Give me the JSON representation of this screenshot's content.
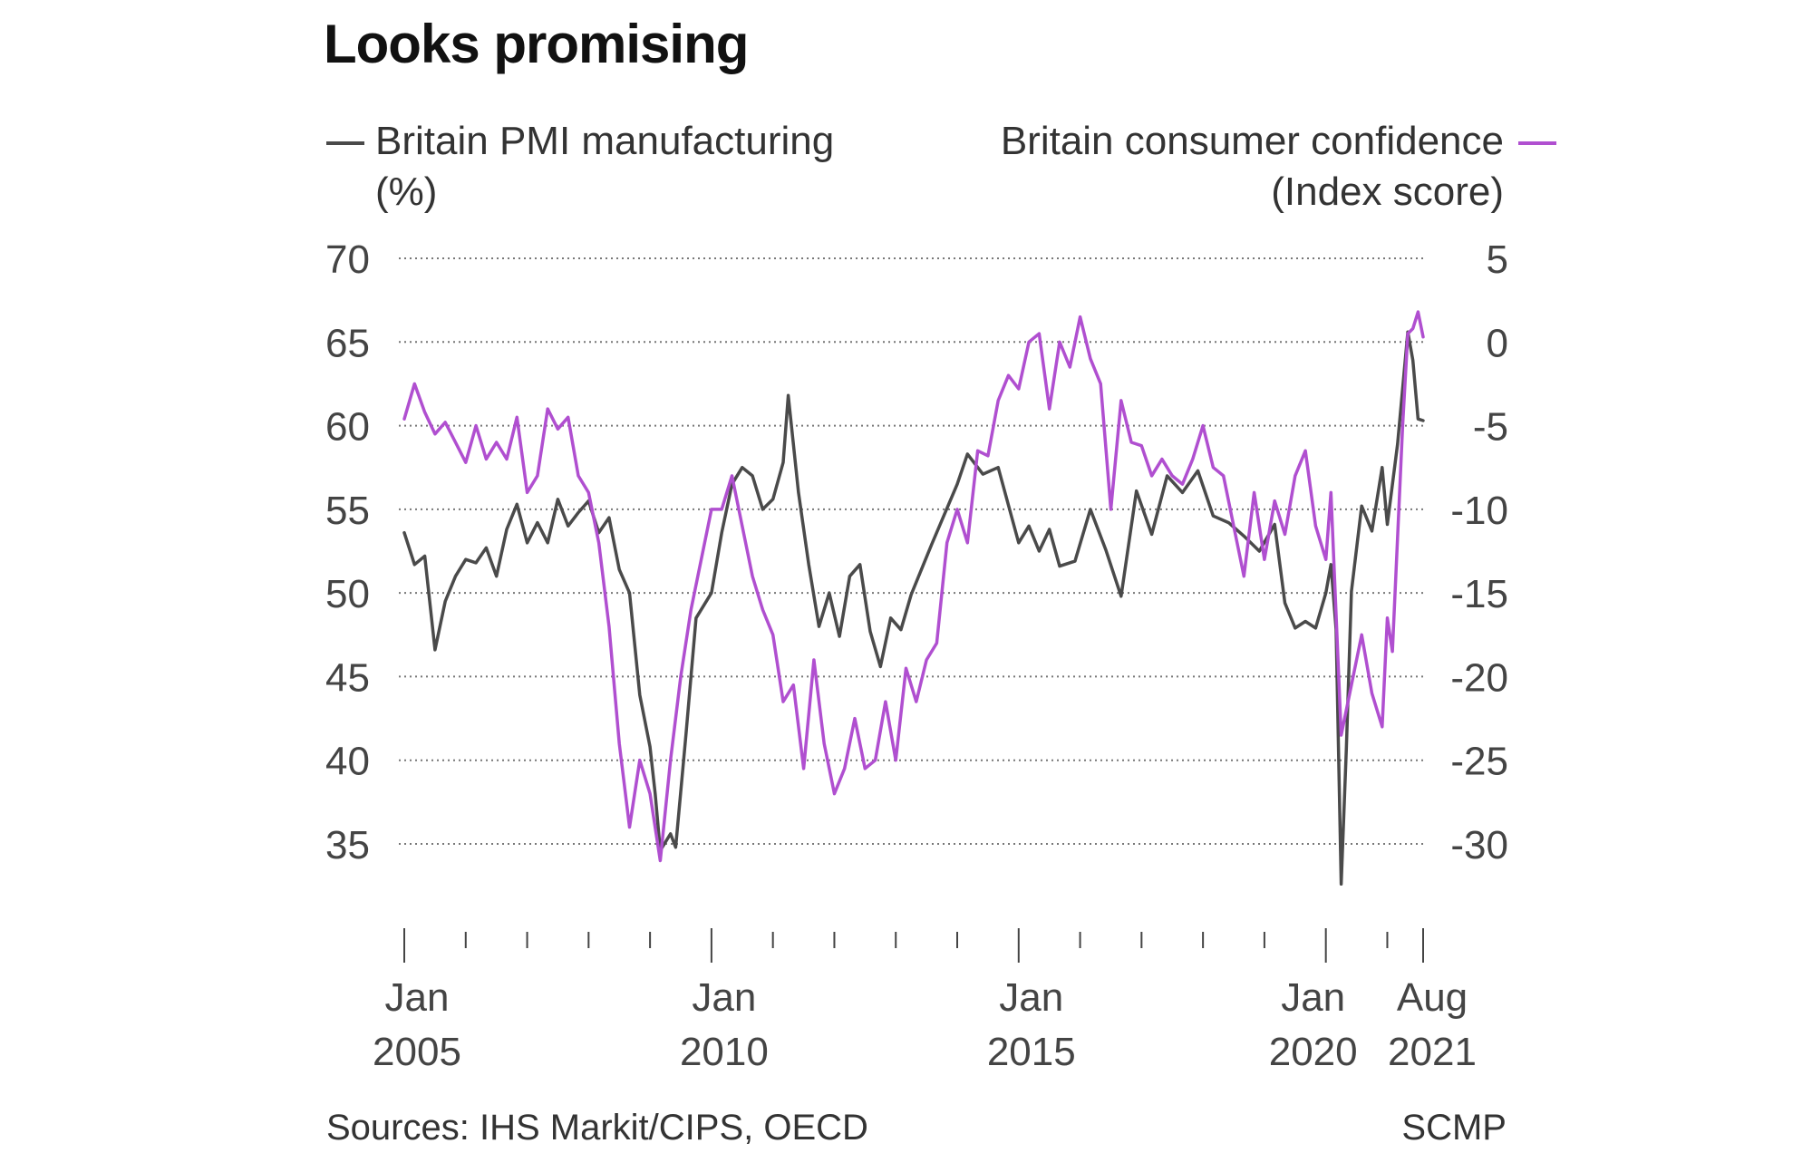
{
  "title": "Looks promising",
  "legend": {
    "left": {
      "line1": "Britain PMI manufacturing",
      "line2": "(%)",
      "color": "#4a4a4a"
    },
    "right": {
      "line1": "Britain consumer confidence",
      "line2": "(Index score)",
      "color": "#b04fd0"
    }
  },
  "footer": {
    "sources": "Sources: IHS Markit/CIPS, OECD",
    "credit": "SCMP"
  },
  "chart_data": {
    "type": "line",
    "title": "Looks promising",
    "x_range": [
      "2005-01",
      "2021-08"
    ],
    "x_ticks": [
      {
        "line1": "Jan",
        "line2": "2005",
        "x": "2005-01"
      },
      {
        "line1": "Jan",
        "line2": "2010",
        "x": "2010-01"
      },
      {
        "line1": "Jan",
        "line2": "2015",
        "x": "2015-01"
      },
      {
        "line1": "Jan",
        "line2": "2020",
        "x": "2020-01"
      },
      {
        "line1": "Aug",
        "line2": "2021",
        "x": "2021-08"
      }
    ],
    "y_left": {
      "label": "Britain PMI manufacturing (%)",
      "range": [
        35,
        70
      ],
      "ticks": [
        70,
        65,
        60,
        55,
        50,
        45,
        40,
        35
      ]
    },
    "y_right": {
      "label": "Britain consumer confidence (Index score)",
      "range": [
        -30,
        5
      ],
      "ticks": [
        5,
        0,
        -5,
        -10,
        -15,
        -20,
        -25,
        -30
      ]
    },
    "grid": true,
    "series": [
      {
        "name": "Britain PMI manufacturing",
        "axis": "left",
        "color": "#4a4a4a",
        "points": [
          [
            "2005-01",
            53.6
          ],
          [
            "2005-03",
            51.7
          ],
          [
            "2005-05",
            52.2
          ],
          [
            "2005-07",
            46.6
          ],
          [
            "2005-09",
            49.5
          ],
          [
            "2005-11",
            51.0
          ],
          [
            "2006-01",
            52.0
          ],
          [
            "2006-03",
            51.8
          ],
          [
            "2006-05",
            52.7
          ],
          [
            "2006-07",
            51.0
          ],
          [
            "2006-09",
            53.8
          ],
          [
            "2006-11",
            55.3
          ],
          [
            "2007-01",
            53.0
          ],
          [
            "2007-03",
            54.2
          ],
          [
            "2007-05",
            53.0
          ],
          [
            "2007-07",
            55.6
          ],
          [
            "2007-09",
            54.0
          ],
          [
            "2007-11",
            54.8
          ],
          [
            "2008-01",
            55.5
          ],
          [
            "2008-03",
            53.6
          ],
          [
            "2008-05",
            54.5
          ],
          [
            "2008-07",
            51.4
          ],
          [
            "2008-09",
            50.0
          ],
          [
            "2008-11",
            43.9
          ],
          [
            "2009-01",
            40.8
          ],
          [
            "2009-02",
            38.0
          ],
          [
            "2009-03",
            34.6
          ],
          [
            "2009-05",
            35.6
          ],
          [
            "2009-06",
            34.8
          ],
          [
            "2009-08",
            41.5
          ],
          [
            "2009-10",
            48.5
          ],
          [
            "2010-01",
            50.0
          ],
          [
            "2010-03",
            53.6
          ],
          [
            "2010-05",
            56.5
          ],
          [
            "2010-07",
            57.5
          ],
          [
            "2010-09",
            57.0
          ],
          [
            "2010-11",
            55.0
          ],
          [
            "2011-01",
            55.6
          ],
          [
            "2011-03",
            57.8
          ],
          [
            "2011-04",
            61.8
          ],
          [
            "2011-06",
            56.0
          ],
          [
            "2011-08",
            51.7
          ],
          [
            "2011-10",
            48.0
          ],
          [
            "2011-12",
            50.0
          ],
          [
            "2012-02",
            47.4
          ],
          [
            "2012-04",
            51.0
          ],
          [
            "2012-06",
            51.7
          ],
          [
            "2012-08",
            47.7
          ],
          [
            "2012-10",
            45.6
          ],
          [
            "2012-12",
            48.5
          ],
          [
            "2013-02",
            47.8
          ],
          [
            "2013-04",
            49.9
          ],
          [
            "2013-06",
            51.4
          ],
          [
            "2013-08",
            52.9
          ],
          [
            "2014-01",
            56.5
          ],
          [
            "2014-03",
            58.3
          ],
          [
            "2014-06",
            57.1
          ],
          [
            "2014-09",
            57.5
          ],
          [
            "2015-01",
            53.0
          ],
          [
            "2015-03",
            54.0
          ],
          [
            "2015-05",
            52.5
          ],
          [
            "2015-07",
            53.8
          ],
          [
            "2015-09",
            51.6
          ],
          [
            "2015-12",
            51.9
          ],
          [
            "2016-03",
            55.0
          ],
          [
            "2016-06",
            52.6
          ],
          [
            "2016-09",
            49.8
          ],
          [
            "2016-12",
            56.1
          ],
          [
            "2017-03",
            53.5
          ],
          [
            "2017-06",
            57.0
          ],
          [
            "2017-09",
            56.0
          ],
          [
            "2017-12",
            57.3
          ],
          [
            "2018-03",
            54.6
          ],
          [
            "2018-06",
            54.2
          ],
          [
            "2018-09",
            53.4
          ],
          [
            "2018-12",
            52.5
          ],
          [
            "2019-03",
            54.1
          ],
          [
            "2019-05",
            49.4
          ],
          [
            "2019-07",
            47.9
          ],
          [
            "2019-09",
            48.3
          ],
          [
            "2019-11",
            47.9
          ],
          [
            "2020-01",
            50.0
          ],
          [
            "2020-02",
            51.7
          ],
          [
            "2020-03",
            47.8
          ],
          [
            "2020-04",
            32.6
          ],
          [
            "2020-05",
            40.7
          ],
          [
            "2020-06",
            50.1
          ],
          [
            "2020-08",
            55.2
          ],
          [
            "2020-10",
            53.7
          ],
          [
            "2020-12",
            57.5
          ],
          [
            "2021-01",
            54.1
          ],
          [
            "2021-03",
            58.9
          ],
          [
            "2021-05",
            65.6
          ],
          [
            "2021-06",
            63.9
          ],
          [
            "2021-07",
            60.4
          ],
          [
            "2021-08",
            60.3
          ]
        ]
      },
      {
        "name": "Britain consumer confidence",
        "axis": "right",
        "color": "#b04fd0",
        "points": [
          [
            "2005-01",
            -4.6
          ],
          [
            "2005-03",
            -2.5
          ],
          [
            "2005-05",
            -4.2
          ],
          [
            "2005-07",
            -5.5
          ],
          [
            "2005-09",
            -4.8
          ],
          [
            "2005-11",
            -6.0
          ],
          [
            "2006-01",
            -7.2
          ],
          [
            "2006-03",
            -5.0
          ],
          [
            "2006-05",
            -7.0
          ],
          [
            "2006-07",
            -6.0
          ],
          [
            "2006-09",
            -7.0
          ],
          [
            "2006-11",
            -4.5
          ],
          [
            "2007-01",
            -9.0
          ],
          [
            "2007-03",
            -8.0
          ],
          [
            "2007-05",
            -4.0
          ],
          [
            "2007-07",
            -5.2
          ],
          [
            "2007-09",
            -4.5
          ],
          [
            "2007-11",
            -8.0
          ],
          [
            "2008-01",
            -9.0
          ],
          [
            "2008-03",
            -12.0
          ],
          [
            "2008-05",
            -17.0
          ],
          [
            "2008-07",
            -24.0
          ],
          [
            "2008-09",
            -29.0
          ],
          [
            "2008-11",
            -25.0
          ],
          [
            "2009-01",
            -27.0
          ],
          [
            "2009-03",
            -31.0
          ],
          [
            "2009-05",
            -25.0
          ],
          [
            "2009-07",
            -20.0
          ],
          [
            "2009-09",
            -16.0
          ],
          [
            "2010-01",
            -10.0
          ],
          [
            "2010-03",
            -10.0
          ],
          [
            "2010-05",
            -8.0
          ],
          [
            "2010-07",
            -11.0
          ],
          [
            "2010-09",
            -14.0
          ],
          [
            "2010-11",
            -16.0
          ],
          [
            "2011-01",
            -17.5
          ],
          [
            "2011-03",
            -21.5
          ],
          [
            "2011-05",
            -20.5
          ],
          [
            "2011-07",
            -25.5
          ],
          [
            "2011-09",
            -19.0
          ],
          [
            "2011-11",
            -24.0
          ],
          [
            "2012-01",
            -27.0
          ],
          [
            "2012-03",
            -25.5
          ],
          [
            "2012-05",
            -22.5
          ],
          [
            "2012-07",
            -25.5
          ],
          [
            "2012-09",
            -25.0
          ],
          [
            "2012-11",
            -21.5
          ],
          [
            "2013-01",
            -25.0
          ],
          [
            "2013-03",
            -19.5
          ],
          [
            "2013-05",
            -21.5
          ],
          [
            "2013-07",
            -19.0
          ],
          [
            "2013-09",
            -18.0
          ],
          [
            "2013-11",
            -12.0
          ],
          [
            "2014-01",
            -10.0
          ],
          [
            "2014-03",
            -12.0
          ],
          [
            "2014-05",
            -6.5
          ],
          [
            "2014-07",
            -6.8
          ],
          [
            "2014-09",
            -3.5
          ],
          [
            "2014-11",
            -2.0
          ],
          [
            "2015-01",
            -2.8
          ],
          [
            "2015-03",
            0.0
          ],
          [
            "2015-05",
            0.5
          ],
          [
            "2015-07",
            -4.0
          ],
          [
            "2015-09",
            0.0
          ],
          [
            "2015-11",
            -1.5
          ],
          [
            "2016-01",
            1.5
          ],
          [
            "2016-03",
            -1.0
          ],
          [
            "2016-05",
            -2.5
          ],
          [
            "2016-07",
            -10.0
          ],
          [
            "2016-09",
            -3.5
          ],
          [
            "2016-11",
            -6.0
          ],
          [
            "2017-01",
            -6.2
          ],
          [
            "2017-03",
            -8.0
          ],
          [
            "2017-05",
            -7.0
          ],
          [
            "2017-07",
            -8.0
          ],
          [
            "2017-09",
            -8.5
          ],
          [
            "2017-11",
            -7.0
          ],
          [
            "2018-01",
            -5.0
          ],
          [
            "2018-03",
            -7.5
          ],
          [
            "2018-05",
            -8.0
          ],
          [
            "2018-07",
            -11.0
          ],
          [
            "2018-09",
            -14.0
          ],
          [
            "2018-11",
            -9.0
          ],
          [
            "2019-01",
            -13.0
          ],
          [
            "2019-03",
            -9.5
          ],
          [
            "2019-05",
            -11.5
          ],
          [
            "2019-07",
            -8.0
          ],
          [
            "2019-09",
            -6.5
          ],
          [
            "2019-11",
            -11.0
          ],
          [
            "2020-01",
            -13.0
          ],
          [
            "2020-02",
            -9.0
          ],
          [
            "2020-04",
            -23.5
          ],
          [
            "2020-06",
            -20.5
          ],
          [
            "2020-08",
            -17.5
          ],
          [
            "2020-10",
            -21.0
          ],
          [
            "2020-12",
            -23.0
          ],
          [
            "2021-01",
            -16.5
          ],
          [
            "2021-02",
            -18.5
          ],
          [
            "2021-04",
            -5.0
          ],
          [
            "2021-05",
            0.5
          ],
          [
            "2021-06",
            0.8
          ],
          [
            "2021-07",
            1.8
          ],
          [
            "2021-08",
            0.3
          ]
        ]
      }
    ]
  }
}
